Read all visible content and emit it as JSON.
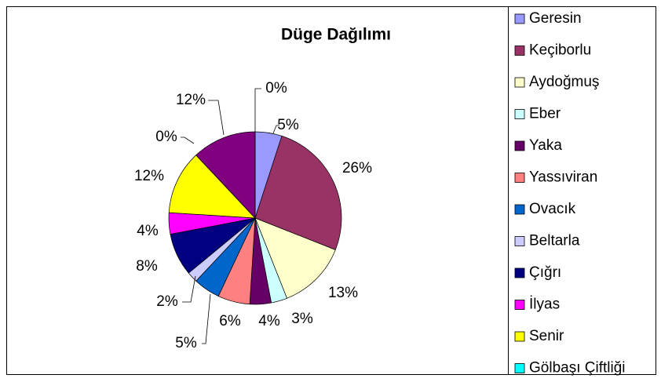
{
  "chart_data": {
    "type": "pie",
    "title": "Düge Dağılımı",
    "categories": [
      "Geresin",
      "Keçiborlu",
      "Aydoğmuş",
      "Eber",
      "Yaka",
      "Yassıviran",
      "Ovacık",
      "Beltarla",
      "Çığrı",
      "İlyas",
      "Senir",
      "Gölbaşı Çiftliği",
      null,
      null
    ],
    "values": [
      5,
      26,
      13,
      3,
      4,
      6,
      5,
      2,
      8,
      4,
      12,
      0,
      12,
      0
    ],
    "value_labels": [
      "5%",
      "26%",
      "13%",
      "3%",
      "4%",
      "6%",
      "5%",
      "2%",
      "8%",
      "4%",
      "12%",
      "0%",
      "12%",
      "0%"
    ],
    "colors": [
      "#9999ff",
      "#993366",
      "#ffffcc",
      "#ccffff",
      "#660066",
      "#ff8080",
      "#0066cc",
      "#ccccff",
      "#000080",
      "#ff00ff",
      "#ffff00",
      "#00ffff",
      "#800080",
      "#800000"
    ]
  }
}
